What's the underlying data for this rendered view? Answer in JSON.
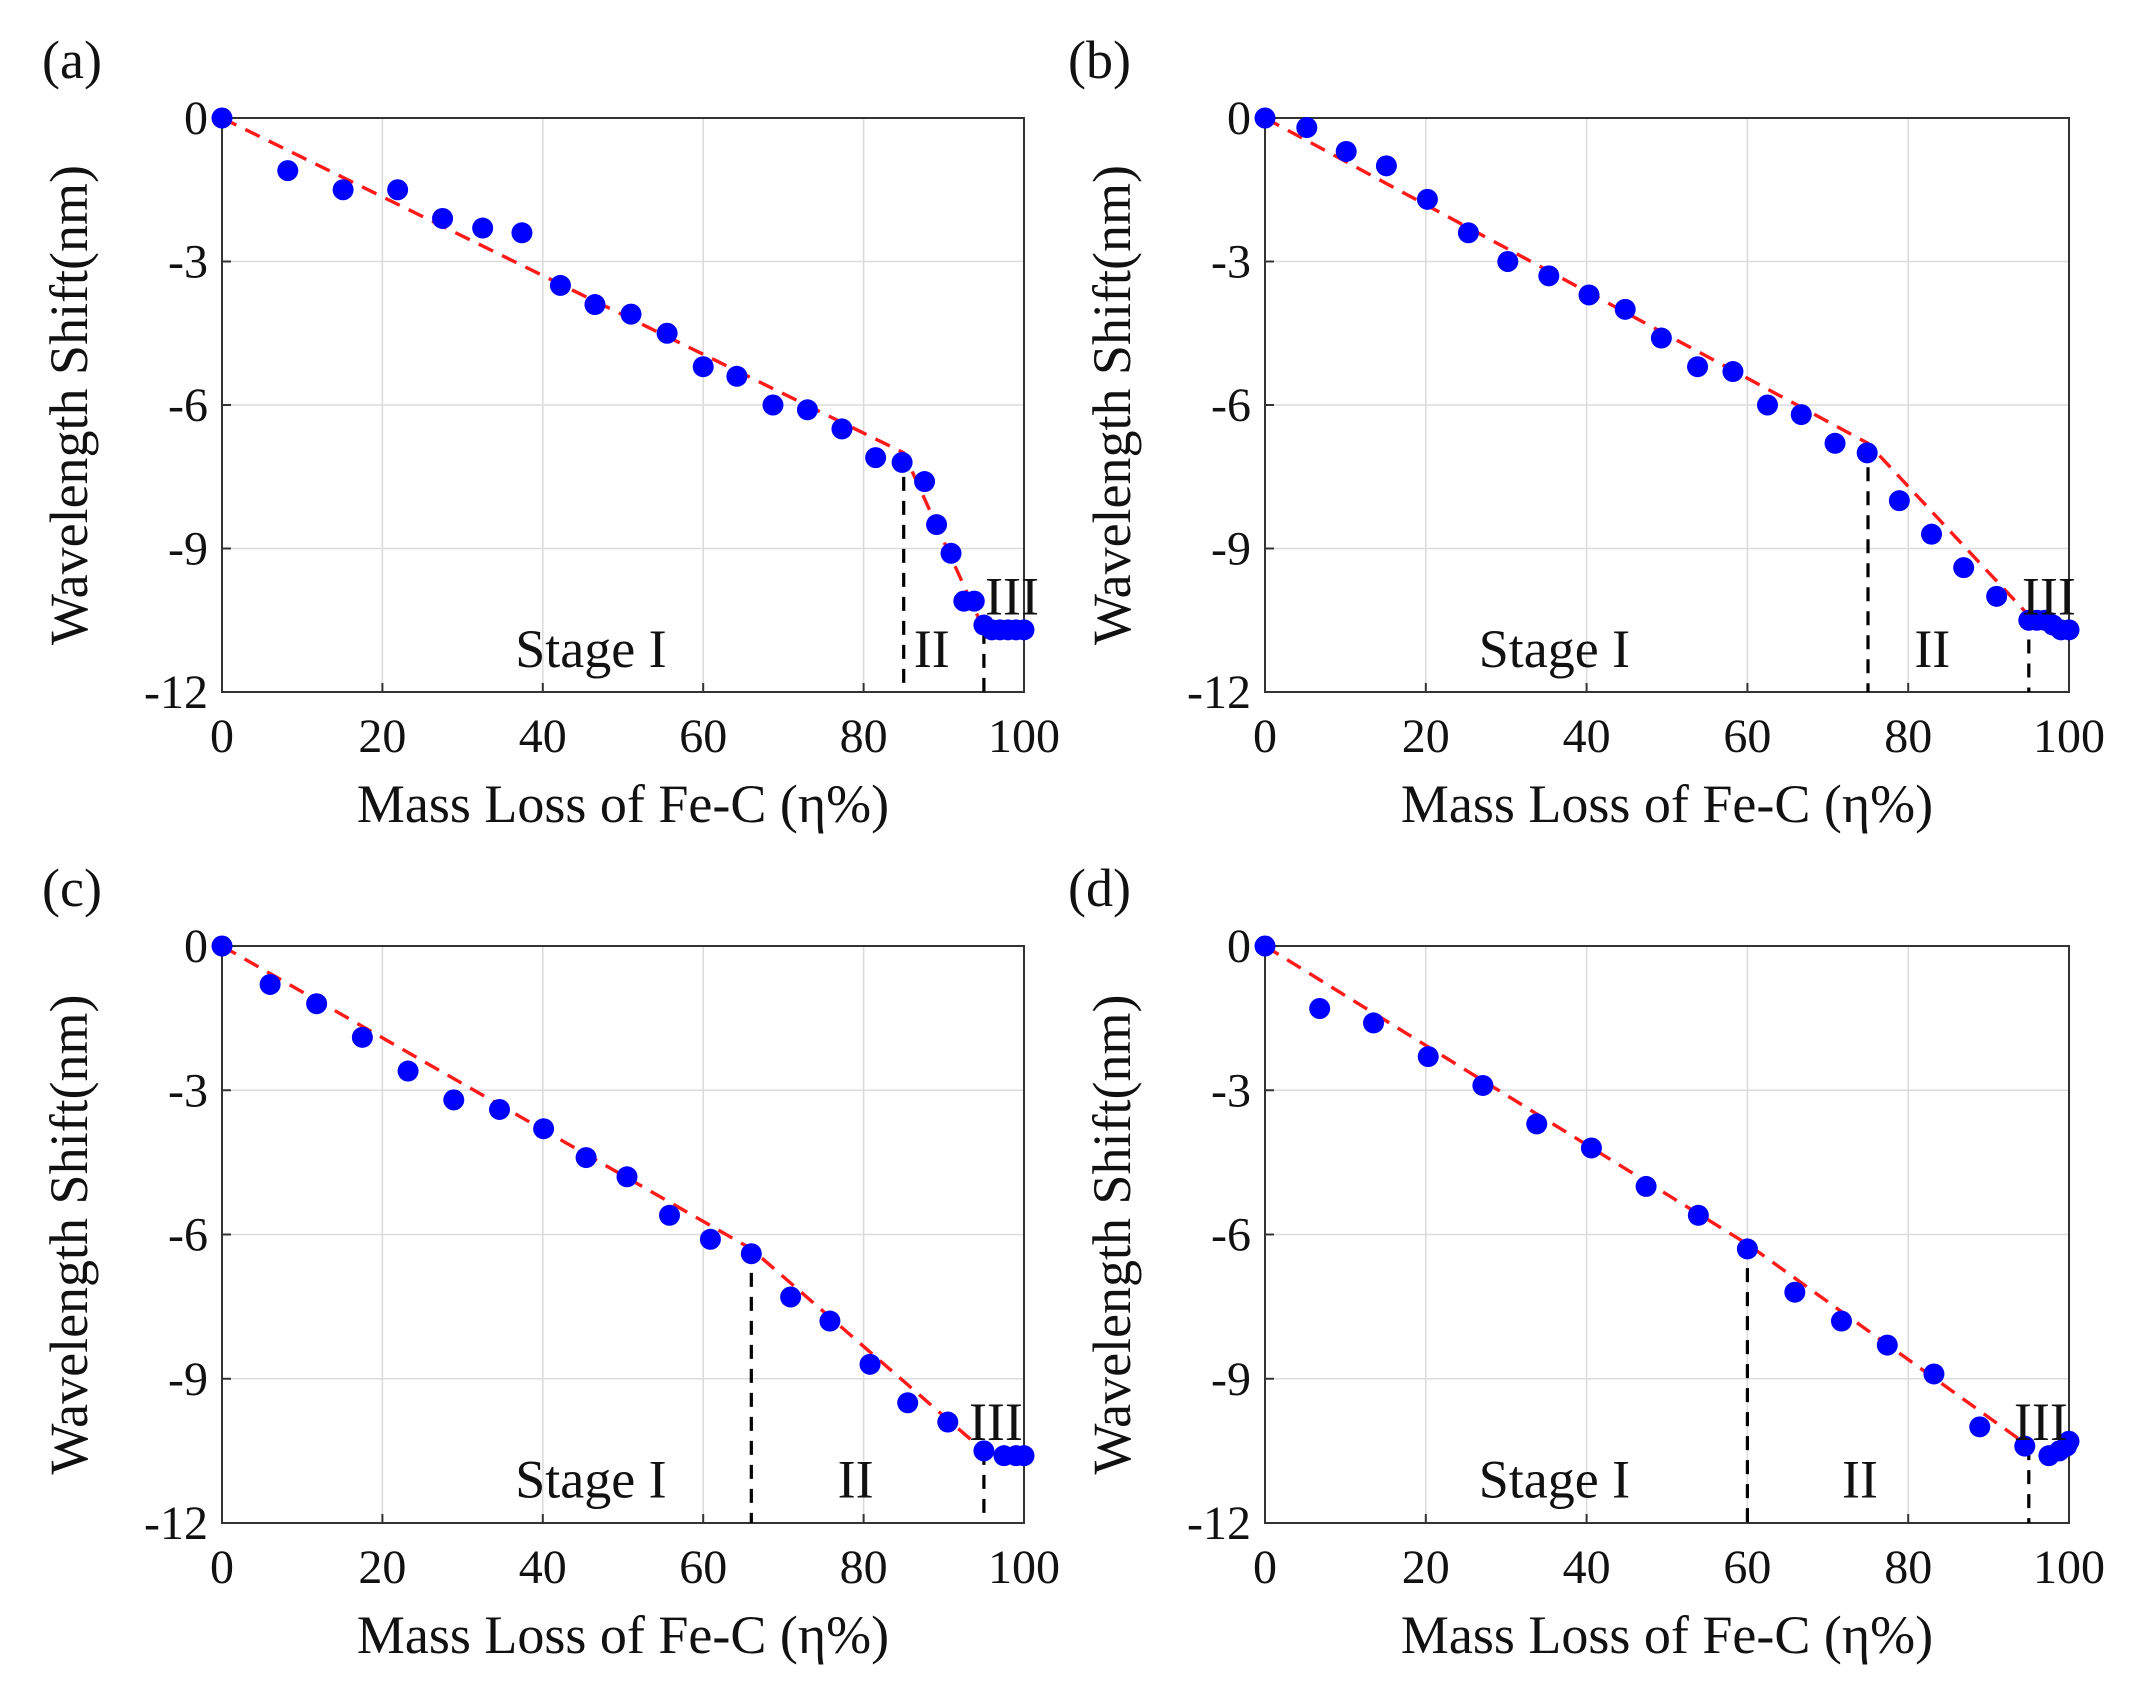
{
  "figure": {
    "panels": [
      "(a)",
      "(b)",
      "(c)",
      "(d)"
    ]
  },
  "colors": {
    "points": "#0000ff",
    "fit_line": "#ff1a1a",
    "boundary": "#000000",
    "grid": "#dcdcdc",
    "axes": "#333333"
  },
  "chart_data": [
    {
      "type": "scatter",
      "panel": "(a)",
      "xlabel": "Mass Loss of Fe-C (η%)",
      "ylabel": "Wavelength Shift(nm)",
      "xlim": [
        0,
        100
      ],
      "ylim": [
        -12,
        0
      ],
      "xticks": [
        0,
        20,
        40,
        60,
        80,
        100
      ],
      "yticks": [
        0,
        -3,
        -6,
        -9,
        -12
      ],
      "grid": true,
      "series": [
        {
          "marker": "filled-circle",
          "x": [
            0,
            8.2,
            15.1,
            21.9,
            27.5,
            32.5,
            37.4,
            42.2,
            46.5,
            51,
            55.5,
            60,
            64.2,
            68.7,
            73,
            77.3,
            81.5,
            84.8,
            87.6,
            89.1,
            90.9,
            92.5,
            93.8,
            95,
            96,
            97,
            98,
            99,
            100
          ],
          "y": [
            0,
            -1.1,
            -1.5,
            -1.5,
            -2.1,
            -2.3,
            -2.4,
            -3.5,
            -3.9,
            -4.1,
            -4.5,
            -5.2,
            -5.4,
            -6,
            -6.1,
            -6.5,
            -7.1,
            -7.2,
            -7.6,
            -8.5,
            -9.1,
            -10.1,
            -10.1,
            -10.6,
            -10.7,
            -10.7,
            -10.7,
            -10.7,
            -10.7
          ]
        }
      ],
      "fit_line": {
        "x": [
          0,
          85,
          95,
          100
        ],
        "y": [
          0,
          -7.0,
          -10.7,
          -10.7
        ]
      },
      "boundaries": [
        85,
        95
      ],
      "annotations": [
        {
          "text": "Stage I",
          "x": 46,
          "y": -11.1
        },
        {
          "text": "II",
          "x": 88.5,
          "y": -11.1
        },
        {
          "text": "III",
          "x": 98.5,
          "y": -10.0
        }
      ]
    },
    {
      "type": "scatter",
      "panel": "(b)",
      "xlabel": "Mass Loss of Fe-C (η%)",
      "ylabel": "Wavelength Shift(nm)",
      "xlim": [
        0,
        100
      ],
      "ylim": [
        -12,
        0
      ],
      "xticks": [
        0,
        20,
        40,
        60,
        80,
        100
      ],
      "yticks": [
        0,
        -3,
        -6,
        -9,
        -12
      ],
      "grid": true,
      "series": [
        {
          "marker": "filled-circle",
          "x": [
            0,
            5.2,
            10.1,
            15.1,
            20.2,
            25.3,
            30.2,
            35.3,
            40.3,
            44.8,
            49.3,
            53.8,
            58.2,
            62.5,
            66.7,
            70.9,
            74.9,
            78.9,
            82.9,
            86.9,
            91,
            95,
            96,
            97,
            98,
            99,
            100
          ],
          "y": [
            0,
            -0.2,
            -0.7,
            -1,
            -1.7,
            -2.4,
            -3,
            -3.3,
            -3.7,
            -4,
            -4.6,
            -5.2,
            -5.3,
            -6,
            -6.2,
            -6.8,
            -7,
            -8,
            -8.7,
            -9.4,
            -10,
            -10.5,
            -10.5,
            -10.5,
            -10.6,
            -10.7,
            -10.7
          ]
        }
      ],
      "fit_line": {
        "x": [
          0,
          75,
          95,
          100
        ],
        "y": [
          0,
          -6.8,
          -10.4,
          -10.6
        ]
      },
      "boundaries": [
        75,
        95
      ],
      "annotations": [
        {
          "text": "Stage I",
          "x": 36,
          "y": -11.1
        },
        {
          "text": "II",
          "x": 83,
          "y": -11.1
        },
        {
          "text": "III",
          "x": 97.5,
          "y": -10.0
        }
      ]
    },
    {
      "type": "scatter",
      "panel": "(c)",
      "xlabel": "Mass Loss of Fe-C (η%)",
      "ylabel": "Wavelength Shift(nm)",
      "xlim": [
        0,
        100
      ],
      "ylim": [
        -12,
        0
      ],
      "xticks": [
        0,
        20,
        40,
        60,
        80,
        100
      ],
      "yticks": [
        0,
        -3,
        -6,
        -9,
        -12
      ],
      "grid": true,
      "series": [
        {
          "marker": "filled-circle",
          "x": [
            0,
            6,
            11.8,
            17.5,
            23.2,
            28.9,
            34.6,
            40.1,
            45.4,
            50.5,
            55.8,
            60.9,
            66,
            70.9,
            75.8,
            80.8,
            85.5,
            90.5,
            95,
            97.5,
            99,
            100
          ],
          "y": [
            0,
            -0.8,
            -1.2,
            -1.9,
            -2.6,
            -3.2,
            -3.4,
            -3.8,
            -4.4,
            -4.8,
            -5.6,
            -6.1,
            -6.4,
            -7.3,
            -7.8,
            -8.7,
            -9.5,
            -9.9,
            -10.5,
            -10.6,
            -10.6,
            -10.6
          ]
        }
      ],
      "fit_line": {
        "x": [
          0,
          66,
          95
        ],
        "y": [
          0,
          -6.3,
          -10.5
        ]
      },
      "boundaries": [
        66,
        95
      ],
      "annotations": [
        {
          "text": "Stage I",
          "x": 46,
          "y": -11.1
        },
        {
          "text": "II",
          "x": 79,
          "y": -11.1
        },
        {
          "text": "III",
          "x": 96.5,
          "y": -9.9
        }
      ]
    },
    {
      "type": "scatter",
      "panel": "(d)",
      "xlabel": "Mass Loss of Fe-C (η%)",
      "ylabel": "Wavelength Shift(nm)",
      "xlim": [
        0,
        100
      ],
      "ylim": [
        -12,
        0
      ],
      "xticks": [
        0,
        20,
        40,
        60,
        80,
        100
      ],
      "yticks": [
        0,
        -3,
        -6,
        -9,
        -12
      ],
      "grid": true,
      "series": [
        {
          "marker": "filled-circle",
          "x": [
            0,
            6.8,
            13.5,
            20.3,
            27.1,
            33.8,
            40.6,
            47.4,
            53.9,
            60,
            65.9,
            71.7,
            77.4,
            83.2,
            88.9,
            94.5,
            97.5,
            98.8,
            99.7,
            100
          ],
          "y": [
            0,
            -1.3,
            -1.6,
            -2.3,
            -2.9,
            -3.7,
            -4.2,
            -5,
            -5.6,
            -6.3,
            -7.2,
            -7.8,
            -8.3,
            -8.9,
            -10,
            -10.4,
            -10.6,
            -10.5,
            -10.4,
            -10.3
          ]
        }
      ],
      "fit_line": {
        "x": [
          0,
          60,
          95
        ],
        "y": [
          0,
          -6.2,
          -10.4
        ]
      },
      "boundaries": [
        60,
        95
      ],
      "annotations": [
        {
          "text": "Stage I",
          "x": 36,
          "y": -11.1
        },
        {
          "text": "II",
          "x": 74,
          "y": -11.1
        },
        {
          "text": "III",
          "x": 96.5,
          "y": -9.9
        }
      ]
    }
  ]
}
